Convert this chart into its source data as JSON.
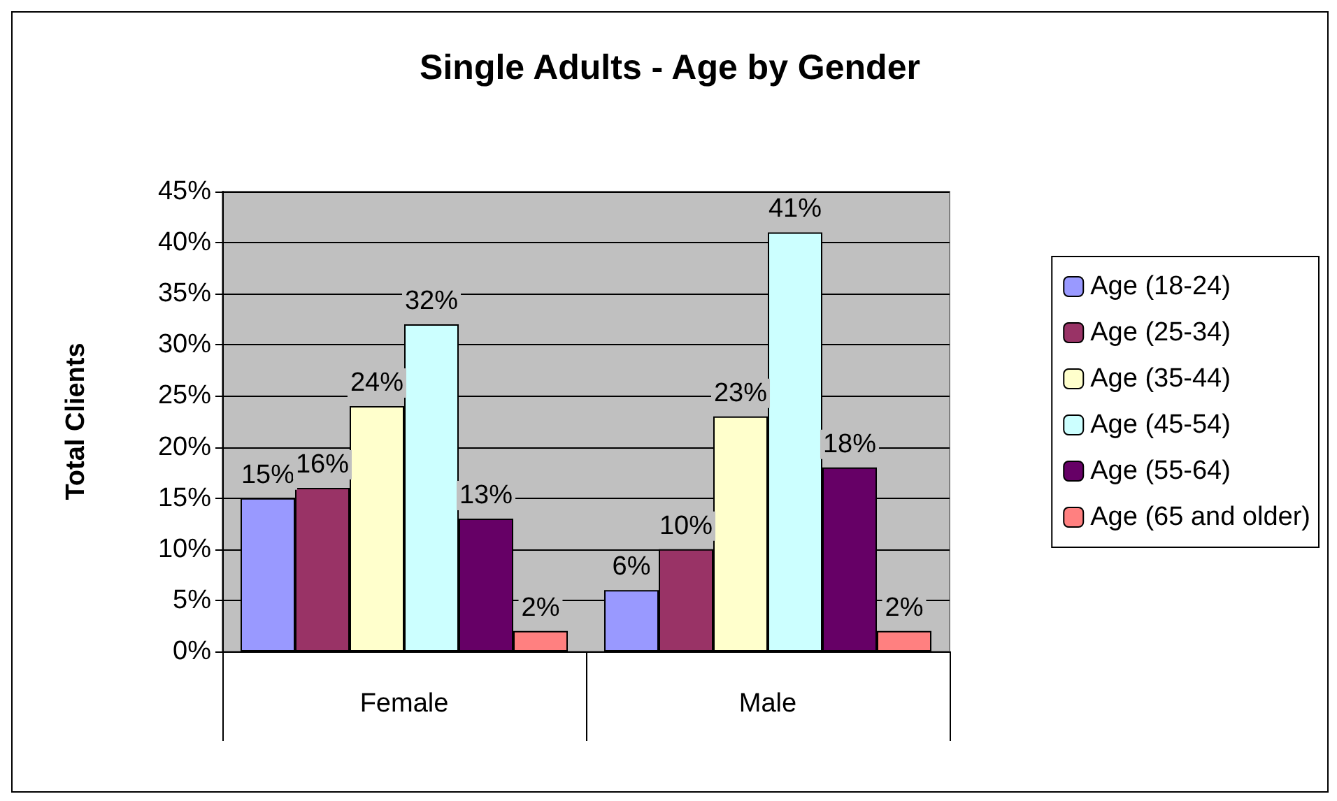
{
  "chart_data": {
    "type": "bar",
    "title": "Single Adults - Age by Gender",
    "ylabel": "Total Clients",
    "categories": [
      "Female",
      "Male"
    ],
    "series": [
      {
        "name": "Age (18-24)",
        "color": "#9999ff",
        "values": [
          15,
          6
        ],
        "value_labels": [
          "15%",
          "6%"
        ]
      },
      {
        "name": "Age (25-34)",
        "color": "#993366",
        "values": [
          16,
          10
        ],
        "value_labels": [
          "16%",
          "10%"
        ]
      },
      {
        "name": "Age (35-44)",
        "color": "#ffffcc",
        "values": [
          24,
          23
        ],
        "value_labels": [
          "24%",
          "23%"
        ]
      },
      {
        "name": "Age (45-54)",
        "color": "#ccffff",
        "values": [
          32,
          41
        ],
        "value_labels": [
          "32%",
          "41%"
        ]
      },
      {
        "name": "Age (55-64)",
        "color": "#660066",
        "values": [
          13,
          18
        ],
        "value_labels": [
          "13%",
          "18%"
        ]
      },
      {
        "name": "Age (65 and older)",
        "color": "#ff8080",
        "values": [
          2,
          2
        ],
        "value_labels": [
          "2%",
          "2%"
        ]
      }
    ],
    "ylim": [
      0,
      45
    ],
    "yticks": [
      {
        "value": 0,
        "label": "0%"
      },
      {
        "value": 5,
        "label": "5%"
      },
      {
        "value": 10,
        "label": "10%"
      },
      {
        "value": 15,
        "label": "15%"
      },
      {
        "value": 20,
        "label": "20%"
      },
      {
        "value": 25,
        "label": "25%"
      },
      {
        "value": 30,
        "label": "30%"
      },
      {
        "value": 35,
        "label": "35%"
      },
      {
        "value": 40,
        "label": "40%"
      },
      {
        "value": 45,
        "label": "45%"
      }
    ],
    "grid": "y",
    "legend": "right"
  }
}
